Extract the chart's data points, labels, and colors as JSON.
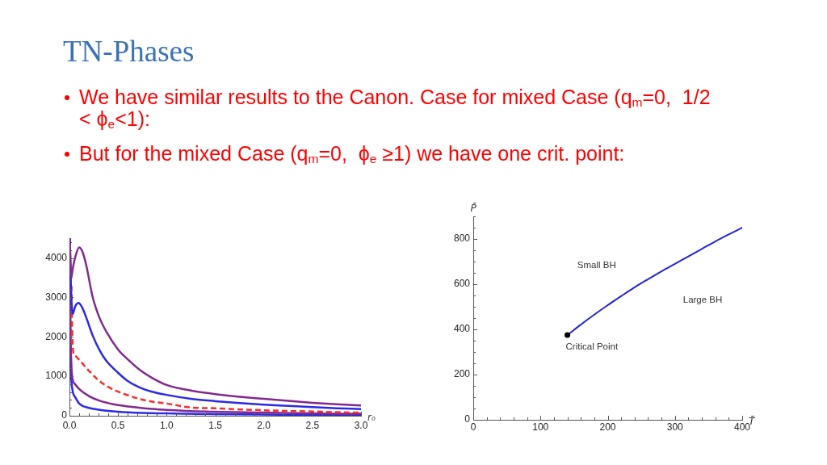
{
  "chart_data": [
    {
      "type": "line",
      "title": "TN-Phases",
      "subtitle": "We have similar results to the Canon. Case for mixed Case (q$_{m}$=0,  1/2 < ϕ$_{e}$<1):",
      "xlabel": "r₀",
      "xlim": [
        0,
        3
      ],
      "ylim": [
        0,
        4500
      ],
      "xticks": [
        {
          "value": 0,
          "label": "0.0"
        },
        {
          "value": 0.1,
          "label": null
        },
        {
          "value": 0.2,
          "label": null
        },
        {
          "value": 0.3,
          "label": null
        },
        {
          "value": 0.4,
          "label": null
        },
        0.5,
        {
          "value": 0.6,
          "label": null
        },
        {
          "value": 0.7,
          "label": null
        },
        {
          "value": 0.8,
          "label": null
        },
        {
          "value": 0.9,
          "label": null
        },
        {
          "value": 1,
          "label": "1.0"
        },
        {
          "value": 1.1,
          "label": null
        },
        {
          "value": 1.2,
          "label": null
        },
        {
          "value": 1.3,
          "label": null
        },
        {
          "value": 1.4,
          "label": null
        },
        1.5,
        {
          "value": 1.6,
          "label": null
        },
        {
          "value": 1.7,
          "label": null
        },
        {
          "value": 1.8,
          "label": null
        },
        {
          "value": 1.9,
          "label": null
        },
        {
          "value": 2,
          "label": "2.0"
        },
        {
          "value": 2.1,
          "label": null
        },
        {
          "value": 2.2,
          "label": null
        },
        {
          "value": 2.3,
          "label": null
        },
        {
          "value": 2.4,
          "label": null
        },
        2.5,
        {
          "value": 2.6,
          "label": null
        },
        {
          "value": 2.7,
          "label": null
        },
        {
          "value": 2.8,
          "label": null
        },
        {
          "value": 2.9,
          "label": null
        },
        {
          "value": 3,
          "label": "3.0"
        }
      ],
      "yticks": [
        0,
        {
          "value": 200,
          "label": null
        },
        {
          "value": 400,
          "label": null
        },
        {
          "value": 600,
          "label": null
        },
        {
          "value": 800,
          "label": null
        },
        1000,
        {
          "value": 1200,
          "label": null
        },
        {
          "value": 1400,
          "label": null
        },
        {
          "value": 1600,
          "label": null
        },
        {
          "value": 1800,
          "label": null
        },
        2000,
        {
          "value": 2200,
          "label": null
        },
        {
          "value": 2400,
          "label": null
        },
        {
          "value": 2600,
          "label": null
        },
        {
          "value": 2800,
          "label": null
        },
        3000,
        {
          "value": 3200,
          "label": null
        },
        {
          "value": 3400,
          "label": null
        },
        {
          "value": 3600,
          "label": null
        },
        {
          "value": 3800,
          "label": null
        },
        4000,
        {
          "value": 4200,
          "label": null
        },
        {
          "value": 4400,
          "label": null
        }
      ],
      "marker": "none",
      "series": [
        {
          "color": "#82298f",
          "x": [
            0.004,
            0.012,
            0.02,
            0.033,
            0.06,
            0.1,
            0.13,
            0.17,
            0.24,
            0.31,
            0.38,
            0.5,
            0.6,
            0.73,
            0.85,
            1,
            1.25,
            1.5,
            1.75,
            2,
            2.25,
            2.5,
            2.75,
            3
          ],
          "values": [
            4480,
            3750,
            3500,
            3720,
            4030,
            4270,
            4180,
            3850,
            3000,
            2480,
            2130,
            1680,
            1430,
            1150,
            960,
            780,
            640,
            550,
            480,
            430,
            380,
            330,
            290,
            260
          ]
        },
        {
          "color": "#2a2ae6",
          "x": [
            0.004,
            0.015,
            0.033,
            0.06,
            0.094,
            0.13,
            0.17,
            0.24,
            0.31,
            0.38,
            0.5,
            0.6,
            0.73,
            0.85,
            1,
            1.25,
            1.5,
            1.75,
            2,
            2.25,
            2.5,
            2.75,
            3
          ],
          "values": [
            4480,
            3300,
            2580,
            2780,
            2860,
            2750,
            2510,
            2030,
            1660,
            1390,
            1090,
            880,
            710,
            610,
            530,
            430,
            370,
            320,
            280,
            250,
            220,
            190,
            170
          ]
        },
        {
          "color": "#ff2a2a",
          "line_style": "dashed",
          "x": [
            0.02,
            0.025,
            0.03,
            0.04,
            0.06,
            0.1,
            0.15,
            0.2,
            0.31,
            0.4,
            0.5,
            0.6,
            0.73,
            0.85,
            1,
            1.25,
            1.5,
            1.75,
            2,
            2.25,
            2.5,
            2.75,
            3
          ],
          "values": [
            3300,
            2600,
            2000,
            1600,
            1520,
            1420,
            1280,
            1140,
            880,
            730,
            610,
            520,
            420,
            360,
            310,
            210,
            190,
            160,
            140,
            120,
            110,
            90,
            80
          ]
        },
        {
          "color": "#82298f",
          "x": [
            0.006,
            0.01,
            0.02,
            0.035,
            0.055,
            0.1,
            0.2,
            0.31,
            0.4,
            0.5,
            0.73,
            1,
            1.5,
            2,
            2.5,
            3
          ],
          "values": [
            4480,
            2500,
            1300,
            900,
            810,
            680,
            500,
            380,
            320,
            270,
            200,
            150,
            100,
            80,
            60,
            50
          ]
        },
        {
          "color": "#2a2aee",
          "x": [
            0.003,
            0.006,
            0.01,
            0.02,
            0.035,
            0.06,
            0.1,
            0.2,
            0.31,
            0.5,
            0.75,
            1,
            1.5,
            2,
            2.5,
            3
          ],
          "values": [
            4480,
            2500,
            1500,
            900,
            600,
            470,
            310,
            200,
            150,
            100,
            70,
            60,
            40,
            30,
            20,
            20
          ]
        }
      ]
    },
    {
      "type": "line",
      "subtitle": "But for the mixed Case (q$_{m}$=0,  ϕ$_{e}$ ≥1) we have one crit. point:",
      "xlabel": "T̄",
      "ylabel": "P̄",
      "annotations": [
        "Small BH",
        "Large BH",
        {
          "text": "Critical Point",
          "x": 140,
          "y": 375
        }
      ],
      "xlim": [
        0,
        400
      ],
      "ylim": [
        0,
        900
      ],
      "xticks": [
        0,
        {
          "value": 20,
          "label": null
        },
        {
          "value": 40,
          "label": null
        },
        {
          "value": 60,
          "label": null
        },
        {
          "value": 80,
          "label": null
        },
        100,
        {
          "value": 120,
          "label": null
        },
        {
          "value": 140,
          "label": null
        },
        {
          "value": 160,
          "label": null
        },
        {
          "value": 180,
          "label": null
        },
        200,
        {
          "value": 220,
          "label": null
        },
        {
          "value": 240,
          "label": null
        },
        {
          "value": 260,
          "label": null
        },
        {
          "value": 280,
          "label": null
        },
        300,
        {
          "value": 320,
          "label": null
        },
        {
          "value": 340,
          "label": null
        },
        {
          "value": 360,
          "label": null
        },
        {
          "value": 380,
          "label": null
        },
        400
      ],
      "yticks": [
        0,
        {
          "value": 50,
          "label": null
        },
        {
          "value": 100,
          "label": null
        },
        {
          "value": 150,
          "label": null
        },
        200,
        {
          "value": 250,
          "label": null
        },
        {
          "value": 300,
          "label": null
        },
        {
          "value": 350,
          "label": null
        },
        400,
        {
          "value": 450,
          "label": null
        },
        {
          "value": 500,
          "label": null
        },
        {
          "value": 550,
          "label": null
        },
        600,
        {
          "value": 650,
          "label": null
        },
        {
          "value": 700,
          "label": null
        },
        {
          "value": 750,
          "label": null
        },
        800,
        {
          "value": 850,
          "label": null
        },
        {
          "value": 900,
          "label": null
        }
      ],
      "marker": "none",
      "series": [
        {
          "color": "#2424d8",
          "x": [
            140,
            160,
            180,
            200,
            220,
            240,
            260,
            280,
            300,
            320,
            340,
            360,
            380,
            400
          ],
          "values": [
            375,
            421,
            465,
            507,
            547,
            586,
            622,
            657,
            690,
            723,
            756,
            789,
            820,
            850
          ]
        },
        {
          "type": "scatter",
          "marker": "circle",
          "color": "#000000",
          "x": [
            140
          ],
          "values": [
            375
          ]
        }
      ]
    }
  ]
}
